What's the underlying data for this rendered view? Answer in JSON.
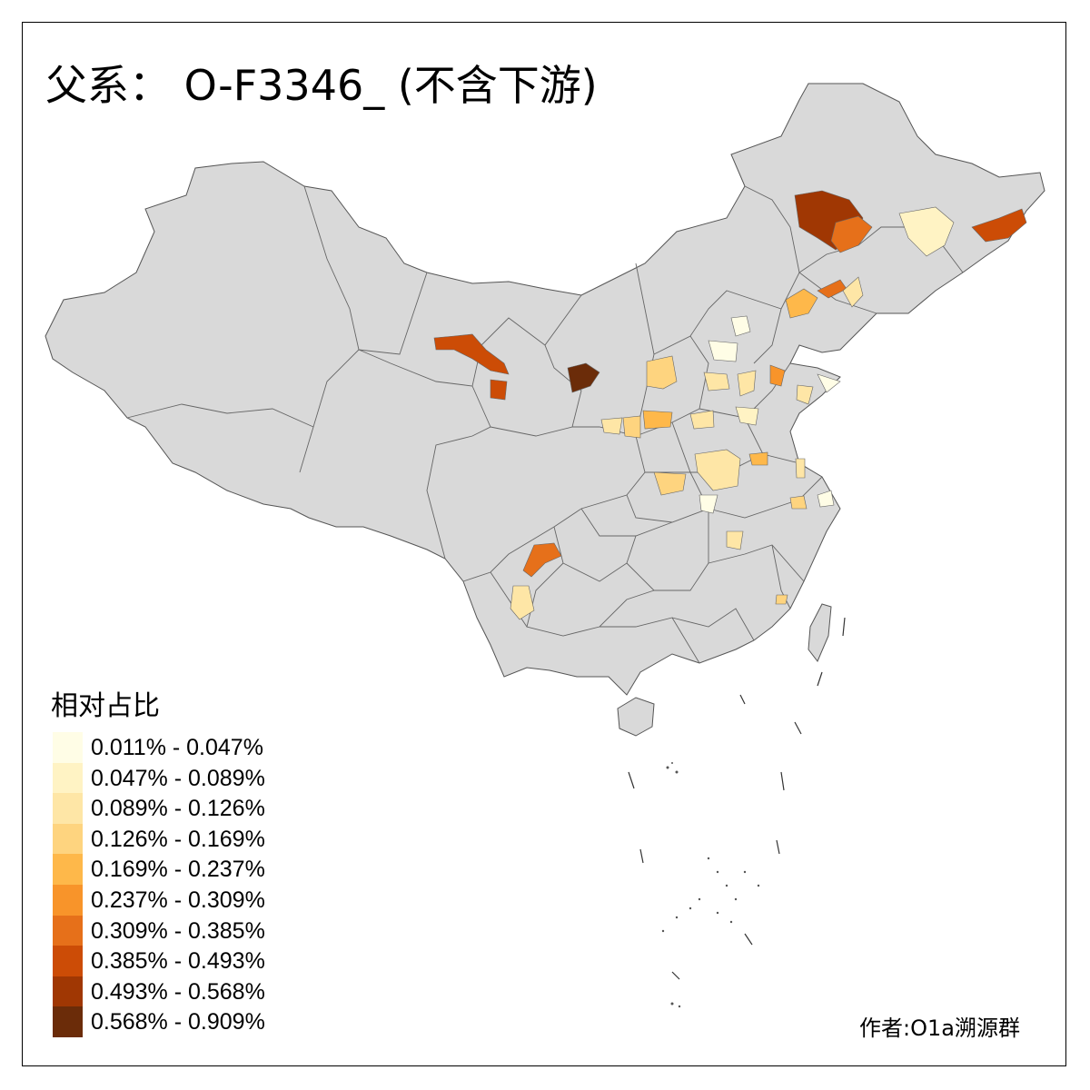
{
  "title": "父系： O-F3346_ (不含下游)",
  "legend": {
    "title": "相对占比",
    "items": [
      {
        "label": "0.011% - 0.047%",
        "color": "#fffde6"
      },
      {
        "label": "0.047% - 0.089%",
        "color": "#fff3c4"
      },
      {
        "label": "0.089% - 0.126%",
        "color": "#fee6a6"
      },
      {
        "label": "0.126% - 0.169%",
        "color": "#fed47f"
      },
      {
        "label": "0.169% - 0.237%",
        "color": "#feb84a"
      },
      {
        "label": "0.237% - 0.309%",
        "color": "#f8942a"
      },
      {
        "label": "0.309% - 0.385%",
        "color": "#e6701a"
      },
      {
        "label": "0.385% - 0.493%",
        "color": "#cc4c06"
      },
      {
        "label": "0.493% - 0.568%",
        "color": "#a03703"
      },
      {
        "label": "0.568% - 0.909%",
        "color": "#6b2c09"
      }
    ]
  },
  "credit": "作者:O1a溯源群",
  "colors": {
    "land": "#d9d9d9",
    "border": "#5a5a5a",
    "frame": "#000000"
  }
}
